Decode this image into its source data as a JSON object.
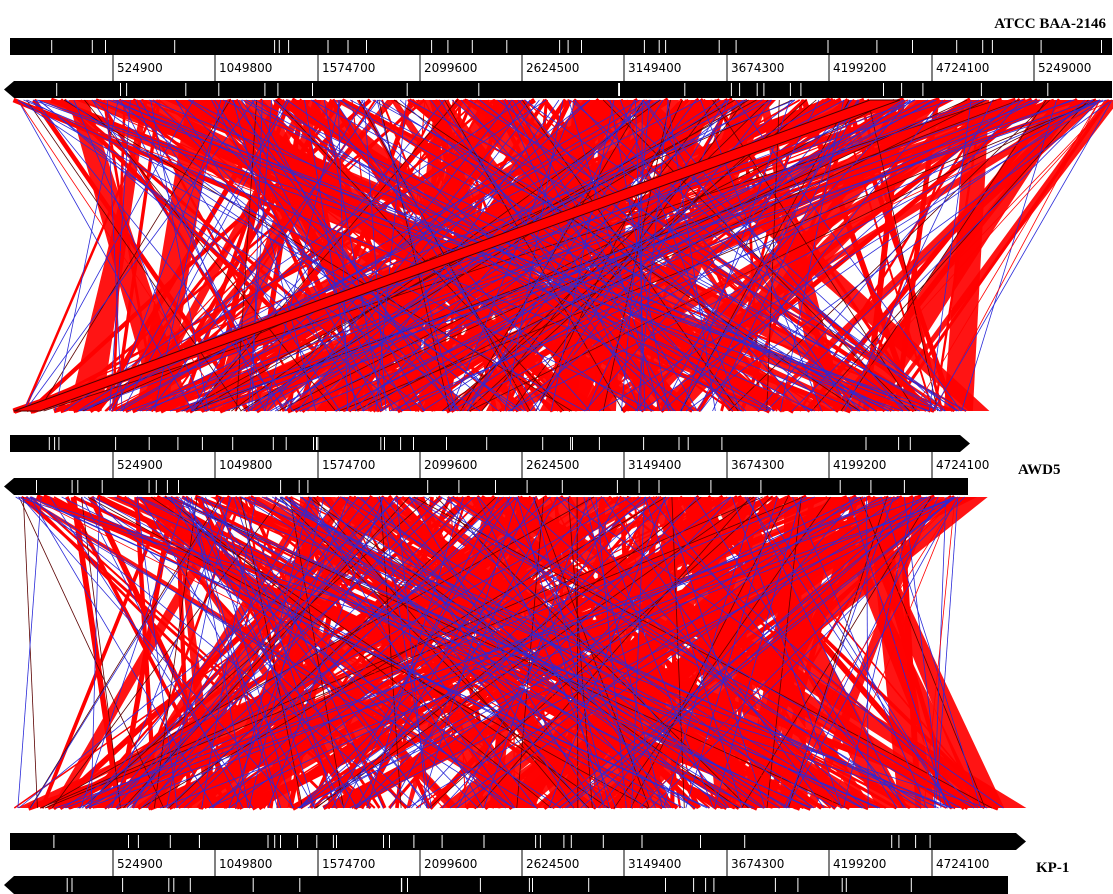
{
  "genomes": [
    {
      "name": "ATCC BAA-2146",
      "ticks": [
        "524900",
        "1049800",
        "1574700",
        "2099600",
        "2624500",
        "3149400",
        "3674300",
        "4199200",
        "4724100",
        "5249000"
      ]
    },
    {
      "name": "AWD5",
      "ticks": [
        "524900",
        "1049800",
        "1574700",
        "2099600",
        "2624500",
        "3149400",
        "3674300",
        "4199200",
        "4724100"
      ]
    },
    {
      "name": "KP-1",
      "ticks": [
        "524900",
        "1049800",
        "1574700",
        "2099600",
        "2624500",
        "3149400",
        "3674300",
        "4199200",
        "4724100"
      ]
    }
  ],
  "colors": {
    "forward_match": "#ff0000",
    "inverted_match": "#2a2ad8",
    "genome_bar": "#000000",
    "background": "#ffffff"
  }
}
